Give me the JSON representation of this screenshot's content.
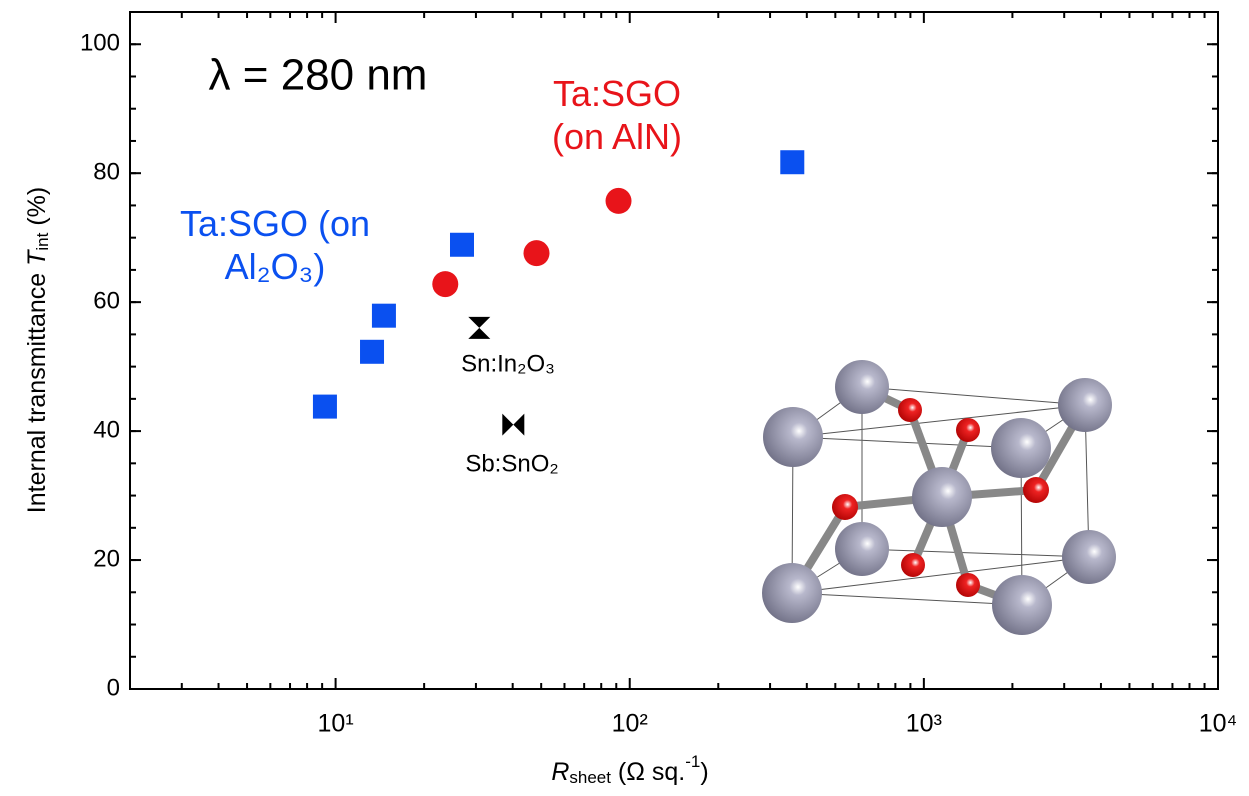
{
  "chart_data": {
    "type": "scatter",
    "title": "λ = 280 nm",
    "xlabel": [
      "R",
      "sheet",
      " (Ω sq.",
      "-1",
      ")"
    ],
    "ylabel": [
      "Internal transmittance ",
      "T",
      "int",
      " (%)"
    ],
    "xscale": "log",
    "xlim": [
      2,
      10000
    ],
    "xticks": [
      {
        "value": 10,
        "label": "10¹"
      },
      {
        "value": 100,
        "label": "10²"
      },
      {
        "value": 1000,
        "label": "10³"
      },
      {
        "value": 10000,
        "label": "10⁴"
      }
    ],
    "ylim": [
      0,
      105
    ],
    "yticks": [
      0,
      20,
      40,
      60,
      80,
      100
    ],
    "minor_ticks": true,
    "series": [
      {
        "name": "Ta:SGO (on Al₂O₃)",
        "color": "#0a50f0",
        "marker": "square",
        "x": [
          9.2,
          13.3,
          14.6,
          26.9,
          357
        ],
        "values": [
          43.8,
          52.3,
          57.9,
          68.9,
          81.7
        ]
      },
      {
        "name": "Ta:SGO (on AlN)",
        "color": "#e8141a",
        "marker": "circle",
        "x": [
          23.6,
          48.2,
          91.6
        ],
        "values": [
          62.8,
          67.6,
          75.7
        ]
      },
      {
        "name": "Sn:In₂O₃",
        "color": "#000000",
        "marker": "hourglass",
        "x": [
          30.8
        ],
        "values": [
          56
        ]
      },
      {
        "name": "Sb:SnO₂",
        "color": "#000000",
        "marker": "bowtie",
        "x": [
          40.2
        ],
        "values": [
          41
        ]
      }
    ]
  }
}
